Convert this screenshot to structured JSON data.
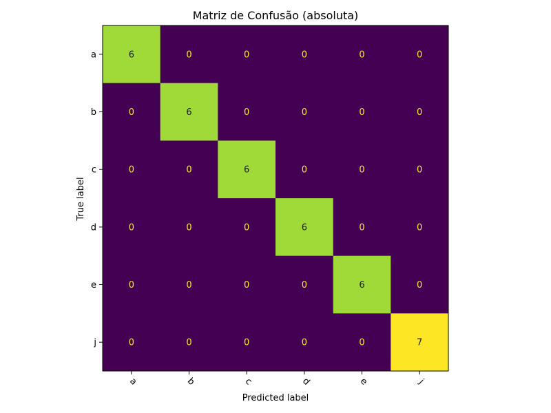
{
  "chart_data": {
    "type": "heatmap",
    "title": "Matriz de Confusão (absoluta)",
    "xlabel": "Predicted label",
    "ylabel": "True label",
    "x_categories": [
      "a",
      "b",
      "c",
      "d",
      "e",
      "j"
    ],
    "y_categories": [
      "a",
      "b",
      "c",
      "d",
      "e",
      "j"
    ],
    "values": [
      [
        6,
        0,
        0,
        0,
        0,
        0
      ],
      [
        0,
        6,
        0,
        0,
        0,
        0
      ],
      [
        0,
        0,
        6,
        0,
        0,
        0
      ],
      [
        0,
        0,
        0,
        6,
        0,
        0
      ],
      [
        0,
        0,
        0,
        0,
        6,
        0
      ],
      [
        0,
        0,
        0,
        0,
        0,
        7
      ]
    ],
    "colormap": "viridis",
    "value_range": [
      0,
      7
    ],
    "x_tick_rotation_deg": 45,
    "colors": {
      "low": "#440154",
      "high": "#fde725",
      "text_on_dark": "#fde725",
      "text_on_light": "#1a1a1a"
    }
  }
}
